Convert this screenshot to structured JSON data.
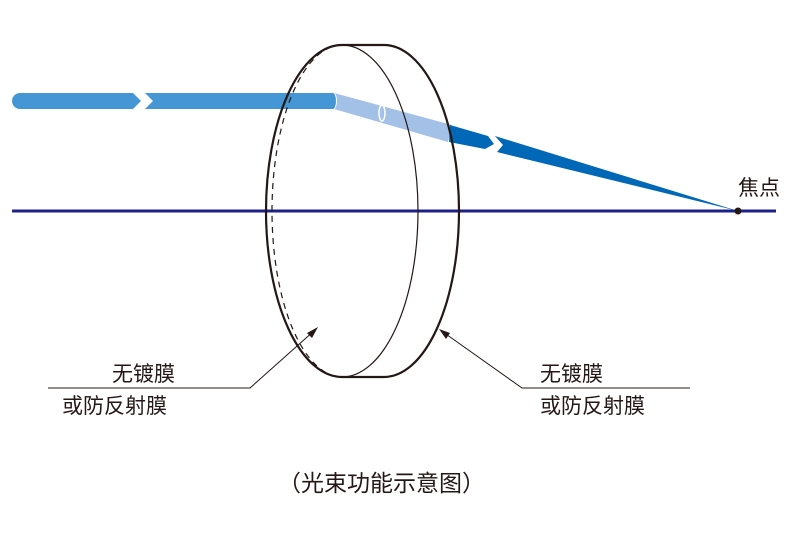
{
  "focus_label": "焦点",
  "left_label": {
    "line1": "无镀膜",
    "line2": "或防反射膜"
  },
  "right_label": {
    "line1": "无镀膜",
    "line2": "或防反射膜"
  },
  "caption": "（光束功能示意图）",
  "colors": {
    "axis": "#1d2088",
    "beam_in": "#4596d4",
    "beam_lens": "#a3c1e6",
    "beam_out": "#0068b7",
    "outline": "#231815"
  }
}
